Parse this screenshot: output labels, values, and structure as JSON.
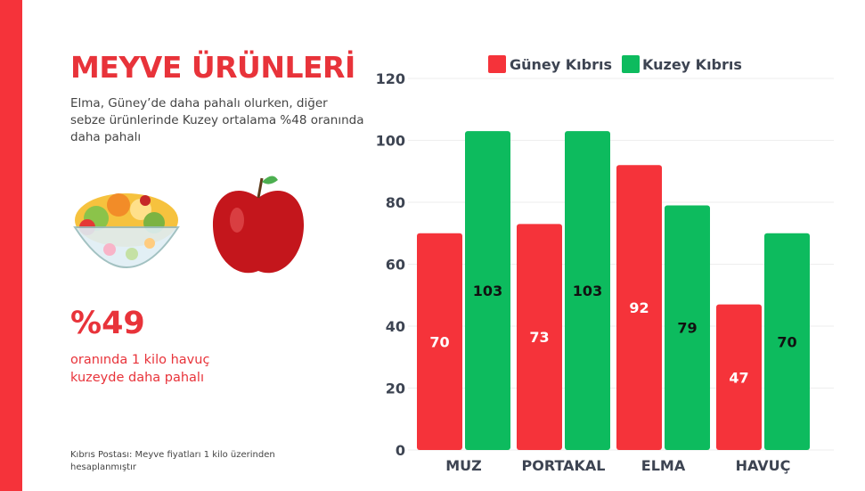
{
  "left": {
    "title": "MEYVE ÜRÜNLERİ",
    "subtitle": "Elma, Güney’de daha pahalı olurken, diğer sebze ürünlerinde Kuzey ortalama %48 oranında daha pahalı",
    "highlight_value": "%49",
    "highlight_text": "oranında 1 kilo havuç kuzeyde daha pahalı",
    "footnote": "Kıbrıs Postası: Meyve fiyatları 1 kilo üzerinden hesaplanmıştır"
  },
  "colors": {
    "accent": "#f5333a",
    "guney": "#f5333a",
    "kuzey": "#0dbb5e"
  },
  "chart_data": {
    "type": "bar",
    "categories": [
      "MUZ",
      "PORTAKAL",
      "ELMA",
      "HAVUÇ"
    ],
    "series": [
      {
        "name": "Güney Kıbrıs",
        "values": [
          70,
          73,
          92,
          47
        ]
      },
      {
        "name": "Kuzey Kıbrıs",
        "values": [
          103,
          103,
          79,
          70
        ]
      }
    ],
    "yticks": [
      "0",
      "20",
      "40",
      "60",
      "80",
      "100",
      "120"
    ],
    "ylim": [
      0,
      120
    ],
    "grid": true,
    "legend": "top"
  }
}
